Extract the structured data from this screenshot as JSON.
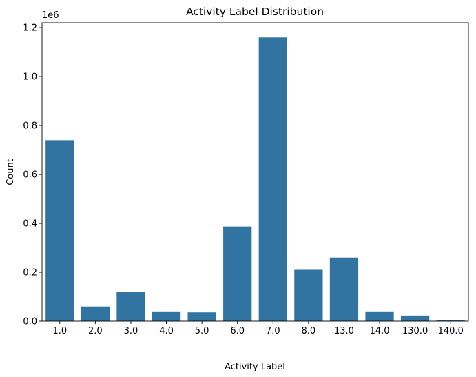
{
  "chart_data": {
    "type": "bar",
    "title": "Activity Label Distribution",
    "xlabel": "Activity Label",
    "ylabel": "Count",
    "y_offset_label": "1e6",
    "categories": [
      "1.0",
      "2.0",
      "3.0",
      "4.0",
      "5.0",
      "6.0",
      "7.0",
      "8.0",
      "13.0",
      "14.0",
      "130.0",
      "140.0"
    ],
    "values": [
      740000,
      60000,
      120000,
      40000,
      36000,
      387000,
      1160000,
      210000,
      260000,
      40000,
      23000,
      5000
    ],
    "ylim": [
      0,
      1220000
    ],
    "yticks": [
      0,
      200000,
      400000,
      600000,
      800000,
      1000000,
      1200000
    ],
    "ytick_labels": [
      "0.0",
      "0.2",
      "0.4",
      "0.6",
      "0.8",
      "1.0",
      "1.2"
    ],
    "bar_color": "#3274a1",
    "grid": false
  }
}
